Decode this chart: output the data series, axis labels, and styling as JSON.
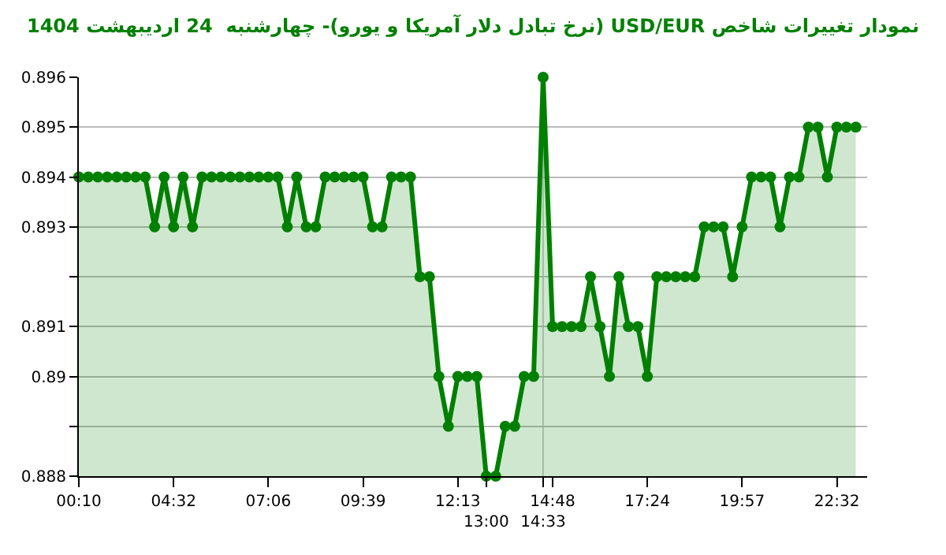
{
  "chart_data": {
    "type": "area",
    "title": "نمودار تغییرات شاخص USD/EUR (نرخ تبادل دلار آمریکا و یورو)- چهارشنبه  24 اردیبهشت 1404",
    "categories": [
      "00:10",
      null,
      null,
      null,
      null,
      null,
      null,
      null,
      null,
      null,
      "04:32",
      null,
      null,
      null,
      null,
      null,
      null,
      null,
      null,
      null,
      "07:06",
      null,
      null,
      null,
      null,
      null,
      null,
      null,
      null,
      null,
      "09:39",
      null,
      null,
      null,
      null,
      null,
      null,
      null,
      null,
      null,
      "12:13",
      null,
      null,
      "13:00",
      null,
      null,
      null,
      null,
      null,
      "14:33",
      "14:48",
      null,
      null,
      null,
      null,
      null,
      null,
      null,
      null,
      null,
      "17:24",
      null,
      null,
      null,
      null,
      null,
      null,
      null,
      null,
      null,
      "19:57",
      null,
      null,
      null,
      null,
      null,
      null,
      null,
      null,
      null,
      "22:32",
      null,
      null
    ],
    "series": [
      {
        "color": "#008000",
        "values": [
          0.894,
          0.894,
          0.894,
          0.894,
          0.894,
          0.894,
          0.894,
          0.894,
          0.893,
          0.894,
          0.893,
          0.894,
          0.893,
          0.894,
          0.894,
          0.894,
          0.894,
          0.894,
          0.894,
          0.894,
          0.894,
          0.894,
          0.893,
          0.894,
          0.893,
          0.893,
          0.894,
          0.894,
          0.894,
          0.894,
          0.894,
          0.893,
          0.893,
          0.894,
          0.894,
          0.894,
          0.892,
          0.892,
          0.89,
          0.889,
          0.89,
          0.89,
          0.89,
          0.888,
          0.888,
          0.889,
          0.889,
          0.89,
          0.89,
          0.896,
          0.891,
          0.891,
          0.891,
          0.891,
          0.892,
          0.891,
          0.89,
          0.892,
          0.891,
          0.891,
          0.89,
          0.892,
          0.892,
          0.892,
          0.892,
          0.892,
          0.893,
          0.893,
          0.893,
          0.892,
          0.893,
          0.894,
          0.894,
          0.894,
          0.893,
          0.894,
          0.894,
          0.895,
          0.895,
          0.894,
          0.895,
          0.895,
          0.895
        ]
      }
    ],
    "ylim": [
      0.888,
      0.896
    ],
    "yticks": [
      0.888,
      {
        "value": 0.889,
        "label": null
      },
      0.89,
      0.891,
      {
        "value": 0.892,
        "label": null
      },
      0.893,
      0.894,
      0.895,
      0.896
    ],
    "ref_lines": [
      {
        "axis": "x",
        "value": "14:33",
        "color": "#cccccc"
      }
    ],
    "grid": "y",
    "marker": "circle",
    "line_style": "solid"
  }
}
